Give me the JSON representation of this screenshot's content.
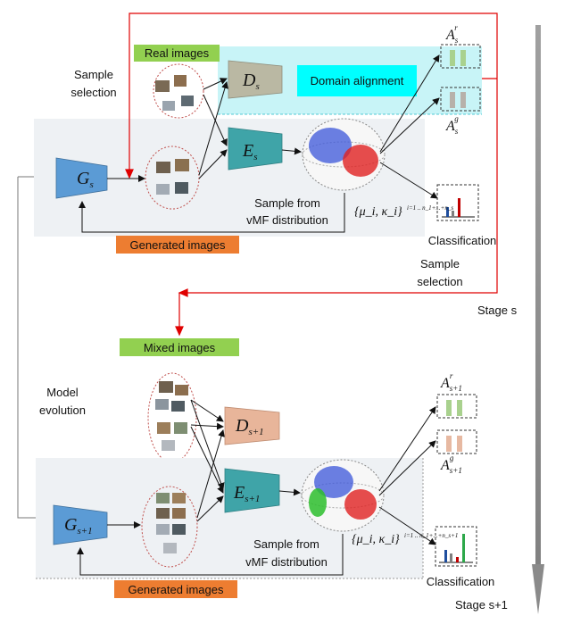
{
  "stage1": {
    "real_images": "Real images",
    "sample_selection_left": "Sample selection",
    "domain_alignment": "Domain alignment",
    "generated_images": "Generated images",
    "vmf_caption_line1": "Sample from",
    "vmf_caption_line2": "vMF distribution",
    "classification": "Classification",
    "sample_selection_right": "Sample selection",
    "stage_label": "Stage s",
    "G": "G",
    "G_sub": "s",
    "D": "D",
    "D_sub": "s",
    "E": "E",
    "E_sub": "s",
    "A_r": "A",
    "A_r_sub": "s",
    "A_r_sup": "r",
    "A_g": "A",
    "A_g_sub": "s",
    "A_g_sup": "g",
    "vmf_formula": "{μ_i, κ_i}",
    "vmf_limits": "i=1 .. n_1+...+n_s"
  },
  "stage2": {
    "mixed_images": "Mixed images",
    "model_evolution": "Model evolution",
    "generated_images": "Generated images",
    "vmf_caption_line1": "Sample from",
    "vmf_caption_line2": "vMF distribution",
    "classification": "Classification",
    "stage_label": "Stage s+1",
    "G": "G",
    "G_sub": "s+1",
    "D": "D",
    "D_sub": "s+1",
    "E": "E",
    "E_sub": "s+1",
    "A_r": "A",
    "A_r_sub": "s+1",
    "A_r_sup": "r",
    "A_g": "A",
    "A_g_sub": "s+1",
    "A_g_sup": "g",
    "vmf_formula": "{μ_i, κ_i}",
    "vmf_limits": "i=1 .. n_1+...+n_s+1"
  },
  "colors": {
    "real_images_fill": "#92D050",
    "mixed_images_fill": "#92D050",
    "generated_images_fill": "#ED7D31",
    "domain_alignment_fill": "#00FFFF",
    "stage_panel": "#EEF1F4",
    "domain_band": "#C8F4F7",
    "G_box": "#5B9BD5",
    "E_box": "#3FA4A8",
    "D1_box": "#BAB8A3",
    "D2_box": "#E8B59A",
    "selection_arrow": "#E00000",
    "bar_green": "#A9D18E",
    "bar_gray": "#B7B1AA",
    "bar_peach": "#E7B9A2"
  }
}
